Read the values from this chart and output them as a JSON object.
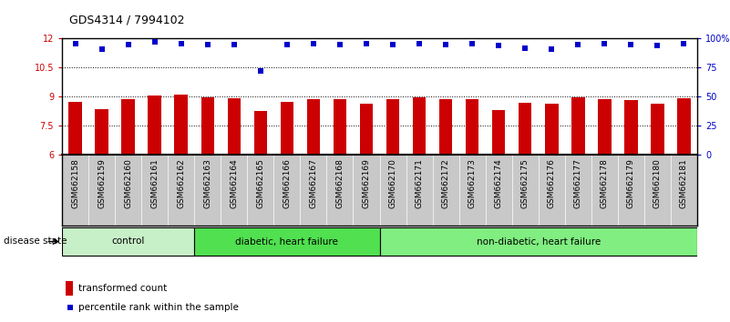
{
  "title": "GDS4314 / 7994102",
  "samples": [
    "GSM662158",
    "GSM662159",
    "GSM662160",
    "GSM662161",
    "GSM662162",
    "GSM662163",
    "GSM662164",
    "GSM662165",
    "GSM662166",
    "GSM662167",
    "GSM662168",
    "GSM662169",
    "GSM662170",
    "GSM662171",
    "GSM662172",
    "GSM662173",
    "GSM662174",
    "GSM662175",
    "GSM662176",
    "GSM662177",
    "GSM662178",
    "GSM662179",
    "GSM662180",
    "GSM662181"
  ],
  "bar_values": [
    8.75,
    8.35,
    8.85,
    9.05,
    9.1,
    8.95,
    8.92,
    8.25,
    8.72,
    8.87,
    8.87,
    8.65,
    8.85,
    8.98,
    8.87,
    8.87,
    8.3,
    8.67,
    8.65,
    8.95,
    8.87,
    8.82,
    8.62,
    8.93
  ],
  "percentile_values": [
    96,
    91,
    95,
    97,
    96,
    95,
    95,
    72,
    95,
    96,
    95,
    96,
    95,
    96,
    95,
    96,
    94,
    92,
    91,
    95,
    96,
    95,
    94,
    96
  ],
  "bar_color": "#cc0000",
  "dot_color": "#0000cc",
  "ylim_left": [
    6,
    12
  ],
  "ylim_right": [
    0,
    100
  ],
  "yticks_left": [
    6,
    7.5,
    9,
    10.5,
    12
  ],
  "yticks_right": [
    0,
    25,
    50,
    75,
    100
  ],
  "ytick_labels_left": [
    "6",
    "7.5",
    "9",
    "10.5",
    "12"
  ],
  "ytick_labels_right": [
    "0",
    "25",
    "50",
    "75",
    "100%"
  ],
  "groups": [
    {
      "label": "control",
      "start": 0,
      "end": 5
    },
    {
      "label": "diabetic, heart failure",
      "start": 5,
      "end": 12
    },
    {
      "label": "non-diabetic, heart failure",
      "start": 12,
      "end": 24
    }
  ],
  "group_colors": [
    "#c8f0c8",
    "#50e050",
    "#80ee80"
  ],
  "disease_state_label": "disease state",
  "legend_bar_label": "transformed count",
  "legend_dot_label": "percentile rank within the sample",
  "fig_bg_color": "#ffffff",
  "plot_bg_color": "#ffffff",
  "tick_bg_color": "#c8c8c8",
  "bar_width": 0.5,
  "title_fontsize": 9,
  "tick_fontsize": 7,
  "label_fontsize": 8
}
